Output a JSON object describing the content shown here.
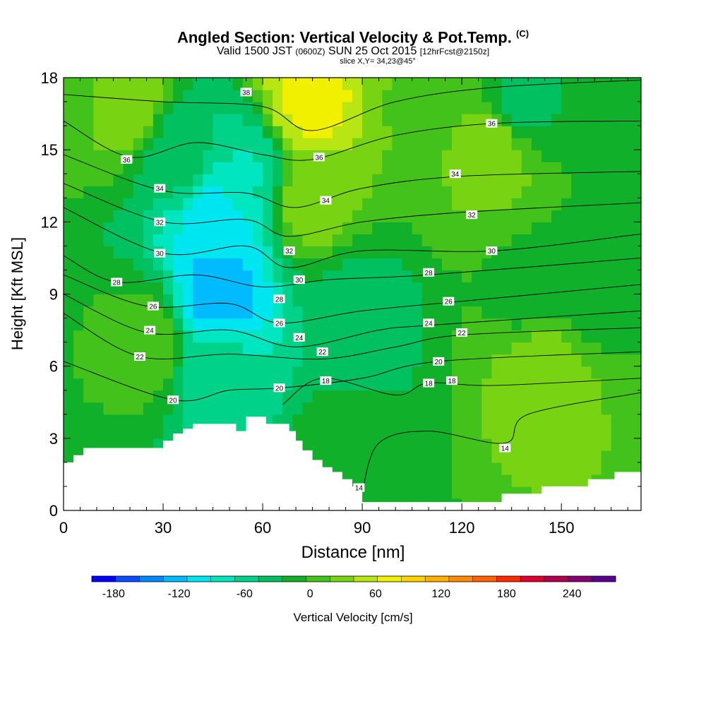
{
  "title": {
    "main": "Angled Section: Vertical Velocity & Pot.Temp.",
    "main_suffix": "(C)",
    "valid_pre": "Valid 1500 JST",
    "valid_small1": "(0600Z)",
    "valid_mid": "SUN 25 Oct 2015",
    "valid_small2": "[12hrFcst@2150z]",
    "slice": "slice X,Y= 34,23@45°"
  },
  "chart_data": {
    "type": "heatmap",
    "xlabel": "Distance [nm]",
    "ylabel": "Height [Kft MSL]",
    "xlim": [
      0,
      174
    ],
    "ylim": [
      0,
      18
    ],
    "x_ticks": [
      0,
      30,
      60,
      90,
      120,
      150
    ],
    "y_ticks": [
      0,
      3,
      6,
      9,
      12,
      15,
      18
    ],
    "colorbar": {
      "label": "Vertical Velocity [cm/s]",
      "tick_values": [
        -180,
        -120,
        -60,
        0,
        60,
        120,
        180,
        240
      ],
      "colors": [
        "#0000ff",
        "#0a4cff",
        "#0088ff",
        "#00bbff",
        "#00e6f0",
        "#00e6c0",
        "#00d28a",
        "#00c060",
        "#11b02a",
        "#44c21c",
        "#78d412",
        "#b8e614",
        "#f0f000",
        "#ffd200",
        "#ffb000",
        "#ff8c00",
        "#ff6000",
        "#ff2a00",
        "#e00030",
        "#b00050",
        "#860070",
        "#5a0090"
      ]
    },
    "velocity_field": [
      {
        "x": 0,
        "y": 18,
        "value": 10
      },
      {
        "x": 20,
        "y": 17,
        "value": 30
      },
      {
        "x": 35,
        "y": 15,
        "value": -40
      },
      {
        "x": 47,
        "y": 12,
        "value": -110
      },
      {
        "x": 47,
        "y": 9,
        "value": -130
      },
      {
        "x": 47,
        "y": 6,
        "value": -60
      },
      {
        "x": 55,
        "y": 14,
        "value": -70
      },
      {
        "x": 74,
        "y": 17,
        "value": 70
      },
      {
        "x": 74,
        "y": 13,
        "value": 30
      },
      {
        "x": 88,
        "y": 8,
        "value": -40
      },
      {
        "x": 85,
        "y": 2,
        "value": -10
      },
      {
        "x": 110,
        "y": 17,
        "value": 15
      },
      {
        "x": 130,
        "y": 15,
        "value": 30
      },
      {
        "x": 138,
        "y": 17,
        "value": -30
      },
      {
        "x": 140,
        "y": 9,
        "value": -10
      },
      {
        "x": 145,
        "y": 6,
        "value": 35
      },
      {
        "x": 158,
        "y": 9,
        "value": -15
      },
      {
        "x": 25,
        "y": 7,
        "value": 10
      }
    ],
    "terrain": {
      "x": [
        0,
        3,
        6,
        9,
        30,
        33,
        36,
        39,
        48,
        52,
        55,
        61,
        68,
        70,
        72,
        75,
        78,
        81,
        84,
        87,
        90,
        96,
        108,
        114,
        126,
        132,
        140,
        144,
        150,
        158,
        166,
        174
      ],
      "height": [
        2,
        2.3,
        2.6,
        2.6,
        2.9,
        3.2,
        3.4,
        3.6,
        3.6,
        3.3,
        3.9,
        3.6,
        3.3,
        2.9,
        2.5,
        2.1,
        1.8,
        1.6,
        1.3,
        1.0,
        0.35,
        0.35,
        0.35,
        0.35,
        0.35,
        0.7,
        0.7,
        1.0,
        1.0,
        1.3,
        1.6,
        1.6
      ]
    },
    "theta_contours": [
      {
        "value": 38,
        "points": [
          [
            0,
            17.3
          ],
          [
            30,
            17.0
          ],
          [
            60,
            16.8
          ],
          [
            75,
            15.8
          ],
          [
            100,
            17.0
          ],
          [
            130,
            17.6
          ],
          [
            174,
            17.9
          ]
        ]
      },
      {
        "value": 36,
        "points": [
          [
            0,
            16.2
          ],
          [
            20,
            14.7
          ],
          [
            40,
            15.3
          ],
          [
            60,
            14.8
          ],
          [
            75,
            14.6
          ],
          [
            100,
            15.6
          ],
          [
            130,
            16.1
          ],
          [
            174,
            16.2
          ]
        ]
      },
      {
        "value": 34,
        "points": [
          [
            0,
            14.8
          ],
          [
            30,
            13.3
          ],
          [
            55,
            13.2
          ],
          [
            70,
            12.6
          ],
          [
            90,
            13.4
          ],
          [
            120,
            13.9
          ],
          [
            174,
            14.1
          ]
        ]
      },
      {
        "value": 32,
        "points": [
          [
            0,
            13.6
          ],
          [
            30,
            12.0
          ],
          [
            55,
            12.1
          ],
          [
            68,
            11.4
          ],
          [
            90,
            12.0
          ],
          [
            120,
            12.4
          ],
          [
            174,
            12.8
          ]
        ]
      },
      {
        "value": 30,
        "points": [
          [
            0,
            12.6
          ],
          [
            30,
            10.7
          ],
          [
            55,
            11.0
          ],
          [
            68,
            10.1
          ],
          [
            90,
            10.8
          ],
          [
            130,
            10.8
          ],
          [
            174,
            11.5
          ]
        ]
      },
      {
        "value": 28,
        "points": [
          [
            0,
            10.6
          ],
          [
            16,
            9.5
          ],
          [
            40,
            9.8
          ],
          [
            60,
            9.3
          ],
          [
            80,
            9.6
          ],
          [
            110,
            9.8
          ],
          [
            174,
            10.5
          ]
        ]
      },
      {
        "value": 26,
        "points": [
          [
            0,
            9.8
          ],
          [
            25,
            8.5
          ],
          [
            50,
            8.6
          ],
          [
            65,
            7.8
          ],
          [
            90,
            8.3
          ],
          [
            120,
            8.7
          ],
          [
            174,
            9.4
          ]
        ]
      },
      {
        "value": 24,
        "points": [
          [
            0,
            9.0
          ],
          [
            25,
            7.4
          ],
          [
            50,
            7.5
          ],
          [
            70,
            6.8
          ],
          [
            95,
            7.5
          ],
          [
            110,
            7.7
          ],
          [
            174,
            8.3
          ]
        ]
      },
      {
        "value": 22,
        "points": [
          [
            0,
            8.2
          ],
          [
            23,
            6.4
          ],
          [
            50,
            6.5
          ],
          [
            78,
            6.3
          ],
          [
            100,
            6.8
          ],
          [
            120,
            7.3
          ],
          [
            174,
            7.6
          ]
        ]
      },
      {
        "value": 20,
        "points": [
          [
            0,
            6.2
          ],
          [
            33,
            4.6
          ],
          [
            50,
            5.0
          ],
          [
            66,
            5.1
          ],
          [
            90,
            5.5
          ],
          [
            113,
            6.2
          ],
          [
            174,
            6.6
          ]
        ]
      },
      {
        "value": 18,
        "points": [
          [
            66,
            4.4
          ],
          [
            78,
            5.5
          ],
          [
            100,
            4.8
          ],
          [
            110,
            5.3
          ],
          [
            130,
            5.2
          ],
          [
            174,
            5.5
          ]
        ]
      },
      {
        "value": 14,
        "points": [
          [
            90,
            0.8
          ],
          [
            95,
            2.8
          ],
          [
            110,
            3.3
          ],
          [
            133,
            2.8
          ],
          [
            140,
            4.0
          ],
          [
            174,
            4.9
          ]
        ]
      }
    ],
    "contour_labels": [
      {
        "text": "38",
        "x": 55,
        "y": 17.4
      },
      {
        "text": "36",
        "x": 19,
        "y": 14.6
      },
      {
        "text": "36",
        "x": 77,
        "y": 14.7
      },
      {
        "text": "36",
        "x": 129,
        "y": 16.1
      },
      {
        "text": "34",
        "x": 29,
        "y": 13.4
      },
      {
        "text": "34",
        "x": 79,
        "y": 12.9
      },
      {
        "text": "34",
        "x": 118,
        "y": 14.0
      },
      {
        "text": "32",
        "x": 29,
        "y": 12.0
      },
      {
        "text": "32",
        "x": 68,
        "y": 10.8
      },
      {
        "text": "32",
        "x": 123,
        "y": 12.3
      },
      {
        "text": "30",
        "x": 29,
        "y": 10.7
      },
      {
        "text": "30",
        "x": 71,
        "y": 9.6
      },
      {
        "text": "30",
        "x": 129,
        "y": 10.8
      },
      {
        "text": "28",
        "x": 16,
        "y": 9.5
      },
      {
        "text": "28",
        "x": 65,
        "y": 8.8
      },
      {
        "text": "28",
        "x": 110,
        "y": 9.9
      },
      {
        "text": "26",
        "x": 27,
        "y": 8.5
      },
      {
        "text": "26",
        "x": 65,
        "y": 7.8
      },
      {
        "text": "26",
        "x": 116,
        "y": 8.7
      },
      {
        "text": "24",
        "x": 26,
        "y": 7.5
      },
      {
        "text": "24",
        "x": 71,
        "y": 7.2
      },
      {
        "text": "24",
        "x": 110,
        "y": 7.8
      },
      {
        "text": "22",
        "x": 23,
        "y": 6.4
      },
      {
        "text": "22",
        "x": 78,
        "y": 6.6
      },
      {
        "text": "22",
        "x": 120,
        "y": 7.4
      },
      {
        "text": "20",
        "x": 33,
        "y": 4.6
      },
      {
        "text": "20",
        "x": 65,
        "y": 5.1
      },
      {
        "text": "20",
        "x": 113,
        "y": 6.2
      },
      {
        "text": "18",
        "x": 79,
        "y": 5.4
      },
      {
        "text": "18",
        "x": 110,
        "y": 5.3
      },
      {
        "text": "18",
        "x": 117,
        "y": 5.4
      },
      {
        "text": "14",
        "x": 89,
        "y": 0.95
      },
      {
        "text": "14",
        "x": 133,
        "y": 2.6
      }
    ]
  }
}
